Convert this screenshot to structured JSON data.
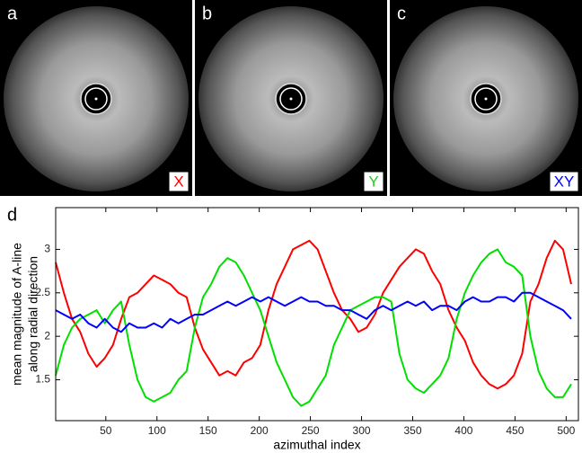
{
  "panels": [
    {
      "label": "a",
      "tag": "X",
      "tag_color": "#ff0000"
    },
    {
      "label": "b",
      "tag": "Y",
      "tag_color": "#22cc22"
    },
    {
      "label": "c",
      "tag": "XY",
      "tag_color": "#0000ff"
    }
  ],
  "chart_data": {
    "type": "line",
    "panel_label": "d",
    "xlabel": "azimuthal index",
    "ylabel": [
      "mean magnitude of A-line",
      "along radial direction"
    ],
    "xlim": [
      1,
      512
    ],
    "ylim": [
      1.03,
      3.48
    ],
    "xticks": [
      50,
      100,
      150,
      200,
      250,
      300,
      350,
      400,
      450,
      500
    ],
    "yticks": [
      1.5,
      2,
      2.5,
      3
    ],
    "x": [
      1,
      9,
      17,
      25,
      33,
      41,
      49,
      57,
      65,
      73,
      81,
      89,
      97,
      105,
      113,
      121,
      129,
      137,
      145,
      153,
      161,
      169,
      177,
      185,
      193,
      201,
      209,
      217,
      225,
      233,
      241,
      249,
      257,
      265,
      273,
      281,
      289,
      297,
      305,
      313,
      321,
      329,
      337,
      345,
      353,
      361,
      369,
      377,
      385,
      393,
      401,
      409,
      417,
      425,
      433,
      441,
      449,
      457,
      465,
      473,
      481,
      489,
      497,
      505
    ],
    "series": [
      {
        "color": "#ff0000",
        "values": [
          2.85,
          2.5,
          2.2,
          2.05,
          1.8,
          1.65,
          1.75,
          1.9,
          2.2,
          2.45,
          2.5,
          2.6,
          2.7,
          2.65,
          2.6,
          2.5,
          2.45,
          2.1,
          1.85,
          1.7,
          1.55,
          1.6,
          1.55,
          1.7,
          1.75,
          1.9,
          2.3,
          2.6,
          2.8,
          3.0,
          3.05,
          3.1,
          3.0,
          2.75,
          2.5,
          2.3,
          2.2,
          2.05,
          2.1,
          2.25,
          2.5,
          2.65,
          2.8,
          2.9,
          3.0,
          2.95,
          2.75,
          2.6,
          2.3,
          2.1,
          1.95,
          1.7,
          1.55,
          1.45,
          1.4,
          1.45,
          1.55,
          1.8,
          2.4,
          2.6,
          2.9,
          3.1,
          3.0,
          2.6
        ]
      },
      {
        "color": "#00e000",
        "values": [
          1.55,
          1.9,
          2.1,
          2.2,
          2.25,
          2.3,
          2.15,
          2.3,
          2.4,
          1.9,
          1.5,
          1.3,
          1.25,
          1.3,
          1.35,
          1.5,
          1.6,
          2.1,
          2.45,
          2.6,
          2.8,
          2.9,
          2.85,
          2.7,
          2.5,
          2.3,
          2.0,
          1.7,
          1.5,
          1.3,
          1.2,
          1.25,
          1.4,
          1.55,
          1.9,
          2.1,
          2.3,
          2.35,
          2.4,
          2.45,
          2.45,
          2.4,
          1.8,
          1.5,
          1.4,
          1.35,
          1.45,
          1.55,
          1.75,
          2.2,
          2.5,
          2.7,
          2.85,
          2.95,
          3.0,
          2.85,
          2.8,
          2.7,
          2.0,
          1.6,
          1.4,
          1.3,
          1.3,
          1.45
        ]
      },
      {
        "color": "#0000ff",
        "values": [
          2.3,
          2.25,
          2.2,
          2.25,
          2.15,
          2.1,
          2.2,
          2.1,
          2.05,
          2.15,
          2.1,
          2.1,
          2.15,
          2.1,
          2.2,
          2.15,
          2.2,
          2.25,
          2.25,
          2.3,
          2.35,
          2.4,
          2.35,
          2.4,
          2.45,
          2.4,
          2.45,
          2.4,
          2.35,
          2.4,
          2.45,
          2.4,
          2.4,
          2.35,
          2.35,
          2.3,
          2.3,
          2.25,
          2.2,
          2.3,
          2.35,
          2.3,
          2.35,
          2.4,
          2.35,
          2.4,
          2.3,
          2.35,
          2.35,
          2.3,
          2.4,
          2.45,
          2.4,
          2.4,
          2.45,
          2.45,
          2.4,
          2.5,
          2.5,
          2.45,
          2.4,
          2.35,
          2.3,
          2.2
        ]
      }
    ]
  }
}
